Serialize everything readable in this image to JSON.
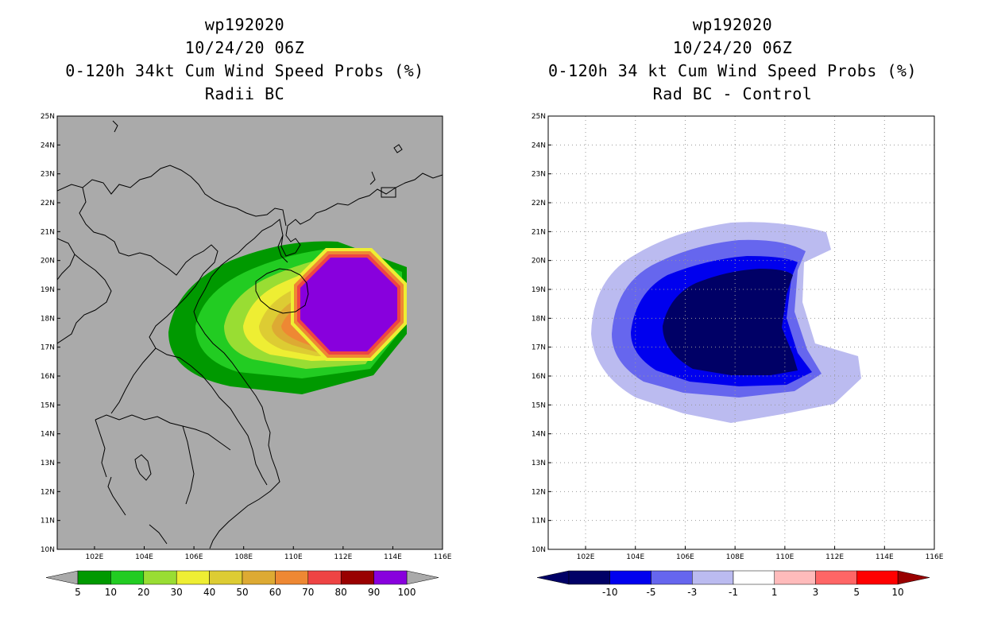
{
  "left_panel": {
    "title_line1": "wp192020",
    "title_line2": "10/24/20 06Z",
    "title_line3": "0-120h 34kt Cum Wind Speed Probs (%)",
    "title_line4": "Radii BC",
    "lat_labels": [
      "25N",
      "24N",
      "23N",
      "22N",
      "21N",
      "20N",
      "19N",
      "18N",
      "17N",
      "16N",
      "15N",
      "14N",
      "13N",
      "12N",
      "11N",
      "10N"
    ],
    "lon_labels": [
      "102E",
      "104E",
      "106E",
      "108E",
      "110E",
      "112E",
      "114E",
      "116E"
    ],
    "colorbar_labels": [
      "5",
      "10",
      "20",
      "30",
      "40",
      "50",
      "60",
      "70",
      "80",
      "90",
      "100"
    ],
    "colorbar_colors": [
      "#009900",
      "#22cc22",
      "#99dd33",
      "#eeee33",
      "#ddcc33",
      "#ddaa33",
      "#ee8833",
      "#ee4444",
      "#990000",
      "#8800dd"
    ]
  },
  "right_panel": {
    "title_line1": "wp192020",
    "title_line2": "10/24/20 06Z",
    "title_line3": "0-120h 34 kt Cum Wind Speed Probs (%)",
    "title_line4": "Rad BC - Control",
    "lat_labels": [
      "25N",
      "24N",
      "23N",
      "22N",
      "21N",
      "20N",
      "19N",
      "18N",
      "17N",
      "16N",
      "15N",
      "14N",
      "13N",
      "12N",
      "11N",
      "10N"
    ],
    "lon_labels": [
      "102E",
      "104E",
      "106E",
      "108E",
      "110E",
      "112E",
      "114E",
      "116E"
    ],
    "colorbar_labels": [
      "-10",
      "-5",
      "-3",
      "-1",
      "1",
      "3",
      "5",
      "10"
    ],
    "colorbar_colors": [
      "#000066",
      "#0000ee",
      "#6666ee",
      "#bbbbf0",
      "#ffffff",
      "#ffbbbb",
      "#ff6666",
      "#ff0000"
    ]
  }
}
